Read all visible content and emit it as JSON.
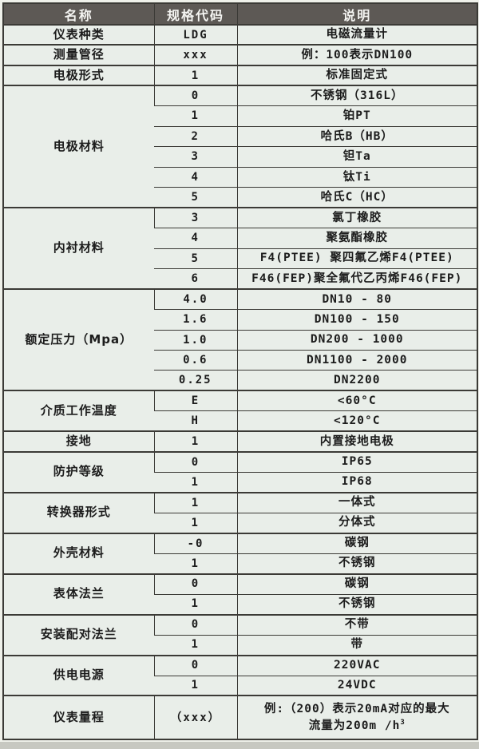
{
  "colors": {
    "page-bg": "#eff1ea",
    "strip-bg": "#c7c8c1",
    "header-bg": "#5d5955",
    "header-text": "#f5f5f2",
    "cell-bg": "#e9eee9",
    "border": "#3b3a36",
    "text": "#1c1c1c"
  },
  "table": {
    "headers": [
      "名称",
      "规格代码",
      "说明"
    ],
    "groups": [
      {
        "name": "仪表种类",
        "rows": [
          {
            "code": "LDG",
            "desc": "电磁流量计"
          }
        ]
      },
      {
        "name": "测量管径",
        "rows": [
          {
            "code": "xxx",
            "desc": "例：100表示DN100"
          }
        ]
      },
      {
        "name": "电极形式",
        "rows": [
          {
            "code": "1",
            "desc": "标准固定式"
          }
        ]
      },
      {
        "name": "电极材料",
        "rows": [
          {
            "code": "0",
            "desc": "不锈钢（316L）"
          },
          {
            "code": "1",
            "desc": "铂PT"
          },
          {
            "code": "2",
            "desc": "哈氏B（HB）"
          },
          {
            "code": "3",
            "desc": "钽Ta"
          },
          {
            "code": "4",
            "desc": "钛Ti"
          },
          {
            "code": "5",
            "desc": "哈氏C（HC）"
          }
        ]
      },
      {
        "name": "内衬材料",
        "rows": [
          {
            "code": "3",
            "desc": "氯丁橡胶"
          },
          {
            "code": "4",
            "desc": "聚氨酯橡胶"
          },
          {
            "code": "5",
            "desc": "F4(PTEE) 聚四氟乙烯F4(PTEE)"
          },
          {
            "code": "6",
            "desc": "F46(FEP)聚全氟代乙丙烯F46(FEP)"
          }
        ]
      },
      {
        "name": "额定压力（Mpa）",
        "rows": [
          {
            "code": "4.0",
            "desc": "DN10 - 80"
          },
          {
            "code": "1.6",
            "desc": "DN100 - 150"
          },
          {
            "code": "1.0",
            "desc": "DN200 - 1000"
          },
          {
            "code": "0.6",
            "desc": "DN1100 - 2000"
          },
          {
            "code": "0.25",
            "desc": "DN2200"
          }
        ]
      },
      {
        "name": "介质工作温度",
        "rows": [
          {
            "code": "E",
            "desc": "<60°C"
          },
          {
            "code": "H",
            "desc": "<120°C"
          }
        ]
      },
      {
        "name": "接地",
        "rows": [
          {
            "code": "1",
            "desc": "内置接地电极"
          }
        ]
      },
      {
        "name": "防护等级",
        "rows": [
          {
            "code": "0",
            "desc": "IP65"
          },
          {
            "code": "1",
            "desc": "IP68"
          }
        ]
      },
      {
        "name": "转换器形式",
        "rows": [
          {
            "code": "1",
            "desc": "一体式"
          },
          {
            "code": "1",
            "desc": "分体式"
          }
        ]
      },
      {
        "name": "外壳材料",
        "rows": [
          {
            "code": "-0",
            "desc": "碳钢"
          },
          {
            "code": "1",
            "desc": "不锈钢"
          }
        ]
      },
      {
        "name": "表体法兰",
        "rows": [
          {
            "code": "0",
            "desc": "碳钢"
          },
          {
            "code": "1",
            "desc": "不锈钢"
          }
        ]
      },
      {
        "name": "安装配对法兰",
        "rows": [
          {
            "code": "0",
            "desc": "不带"
          },
          {
            "code": "1",
            "desc": "带"
          }
        ]
      },
      {
        "name": "供电电源",
        "rows": [
          {
            "code": "0",
            "desc": "220VAC"
          },
          {
            "code": "1",
            "desc": "24VDC"
          }
        ]
      },
      {
        "name": "仪表量程",
        "rows": [
          {
            "code": "（xxx）",
            "desc": "例:（200）表示20mA对应的最大",
            "desc2": "流量为200m /h",
            "desc2_sup": "3"
          }
        ]
      }
    ]
  }
}
